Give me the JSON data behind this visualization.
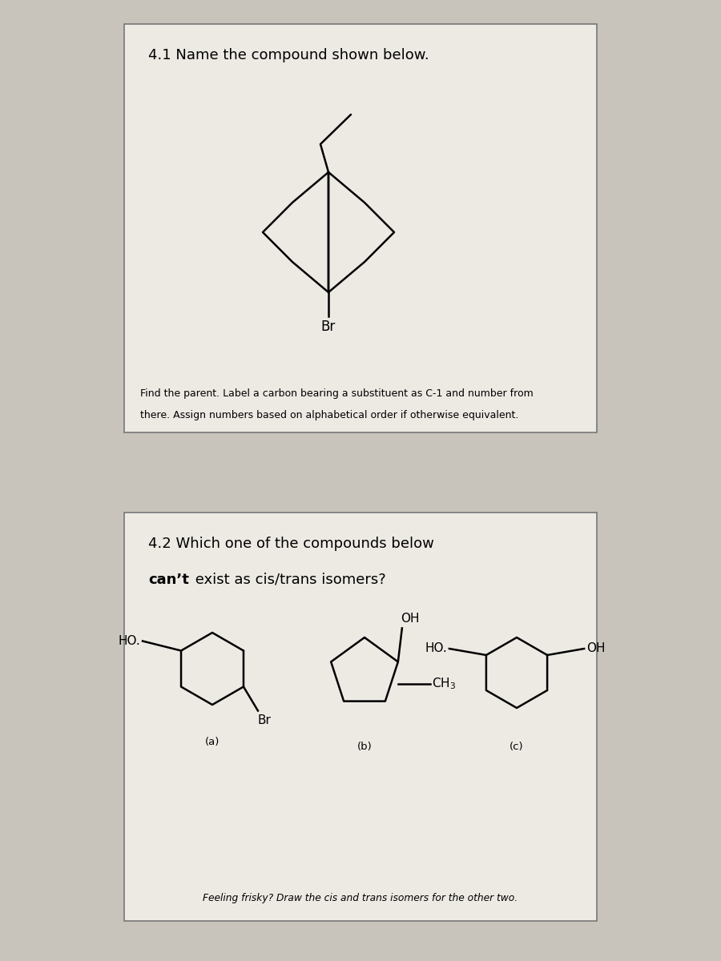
{
  "bg_color": "#c8c4bc",
  "box_color": "#edeae4",
  "title1": "4.1 Name the compound shown below.",
  "hint1_line1": "Find the parent. Label a carbon bearing a substituent as C-1 and number from",
  "hint1_line2": "there. Assign numbers based on alphabetical order if otherwise equivalent.",
  "title2_line1": "4.2 Which one of the compounds below",
  "title2_line2_bold": "can’t",
  "title2_line2_rest": " exist as cis/trans isomers?",
  "hint2": "Feeling frisky? Draw the cis and trans isomers for the other two.",
  "label_a": "(a)",
  "label_b": "(b)",
  "label_c": "(c)",
  "lw_ring": 1.8
}
